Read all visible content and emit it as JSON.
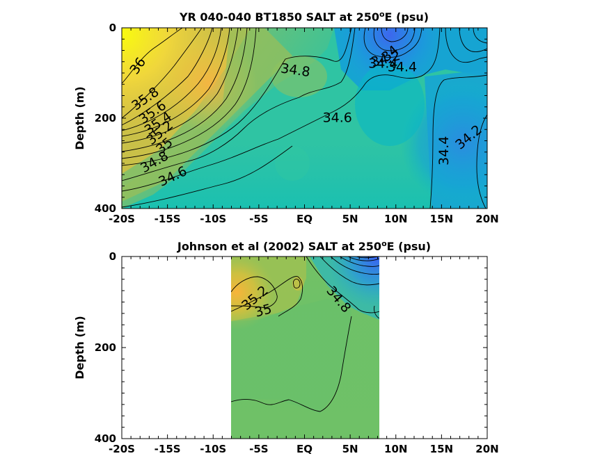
{
  "figure": {
    "top_title_prefix": "YR 040-040 BT1850 SALT at 250",
    "bottom_title_prefix": "Johnson et al (2002) SALT at 250",
    "title_degree": "o",
    "title_suffix": "E (psu)"
  },
  "chart_data": [
    {
      "type": "heatmap",
      "title": "YR 040-040 BT1850 SALT at 250°E (psu)",
      "xlabel": "",
      "ylabel": "Depth (m)",
      "xlim": [
        -20,
        20
      ],
      "ylim": [
        400,
        0
      ],
      "x_tick_values": [
        -20,
        -15,
        -10,
        -5,
        0,
        5,
        10,
        15,
        20
      ],
      "x_tick_labels": [
        "-20S",
        "-15S",
        "-10S",
        "-5S",
        "EQ",
        "5N",
        "10N",
        "15N",
        "20N"
      ],
      "y_tick_values": [
        0,
        200,
        400
      ],
      "y_tick_labels": [
        "0",
        "200",
        "400"
      ],
      "colormap": "parula",
      "color_range": [
        33.6,
        36.2
      ],
      "contour_interval": 0.2,
      "contour_labels": [
        {
          "text": "36",
          "lat": -18.2,
          "depth": 85,
          "angle": -55
        },
        {
          "text": "35.8",
          "lat": -17.4,
          "depth": 158,
          "angle": -35
        },
        {
          "text": "35.6",
          "lat": -16.6,
          "depth": 188,
          "angle": -35
        },
        {
          "text": "35.4",
          "lat": -16.0,
          "depth": 212,
          "angle": -35
        },
        {
          "text": "35.2",
          "lat": -15.8,
          "depth": 233,
          "angle": -40
        },
        {
          "text": "35",
          "lat": -15.3,
          "depth": 262,
          "angle": -40
        },
        {
          "text": "34.8",
          "lat": -16.4,
          "depth": 298,
          "angle": -30
        },
        {
          "text": "34.6",
          "lat": -14.4,
          "depth": 330,
          "angle": -25
        },
        {
          "text": "34.8",
          "lat": -1.0,
          "depth": 95,
          "angle": 8
        },
        {
          "text": "34.6",
          "lat": 3.6,
          "depth": 200,
          "angle": 0
        },
        {
          "text": "34.4",
          "lat": 8.6,
          "depth": 80,
          "angle": 0
        },
        {
          "text": "34",
          "lat": 9.4,
          "depth": 58,
          "angle": -40
        },
        {
          "text": "34.2",
          "lat": 8.9,
          "depth": 70,
          "angle": -15
        },
        {
          "text": "34.4",
          "lat": 10.7,
          "depth": 88,
          "angle": 0
        },
        {
          "text": "34.4",
          "lat": 15.3,
          "depth": 272,
          "angle": -90
        },
        {
          "text": "34.2",
          "lat": 18.0,
          "depth": 243,
          "angle": -40
        }
      ]
    },
    {
      "type": "heatmap",
      "title": "Johnson et al (2002) SALT at 250°E (psu)",
      "xlabel": "",
      "ylabel": "Depth (m)",
      "xlim": [
        -20,
        20
      ],
      "ylim": [
        400,
        0
      ],
      "data_lat_range": [
        -8,
        8.3
      ],
      "x_tick_values": [
        -20,
        -15,
        -10,
        -5,
        0,
        5,
        10,
        15,
        20
      ],
      "x_tick_labels": [
        "-20S",
        "-15S",
        "-10S",
        "-5S",
        "EQ",
        "5N",
        "10N",
        "15N",
        "20N"
      ],
      "y_tick_values": [
        0,
        200,
        400
      ],
      "y_tick_labels": [
        "0",
        "200",
        "400"
      ],
      "colormap": "parula",
      "color_range": [
        33.6,
        36.2
      ],
      "contour_interval": 0.2,
      "contour_labels": [
        {
          "text": "35.2",
          "lat": -5.4,
          "depth": 92,
          "angle": -40
        },
        {
          "text": "35",
          "lat": -4.5,
          "depth": 120,
          "angle": -15
        },
        {
          "text": "34.8",
          "lat": 3.7,
          "depth": 95,
          "angle": 50
        }
      ]
    }
  ]
}
